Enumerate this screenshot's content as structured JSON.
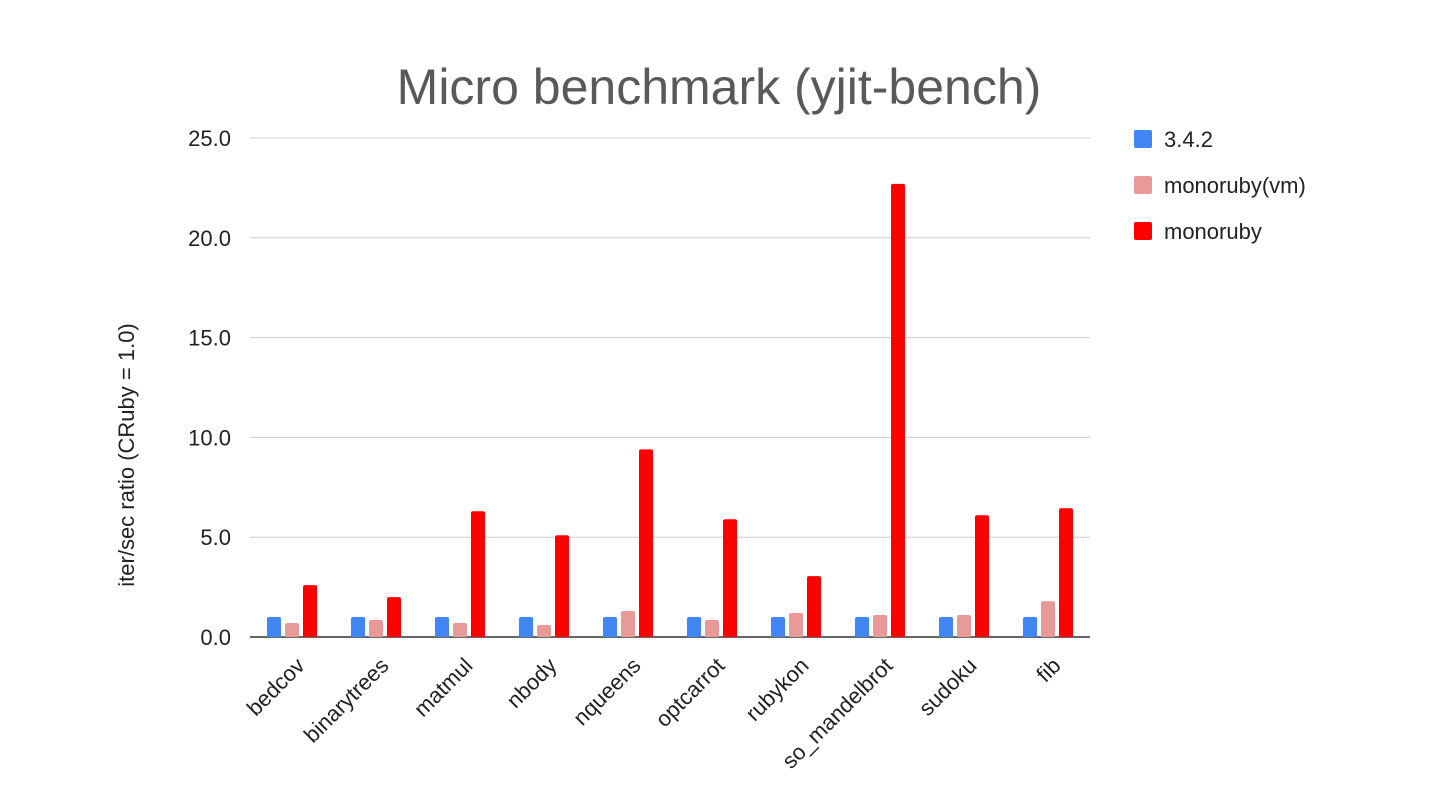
{
  "chart_data": {
    "type": "bar",
    "title": "Micro benchmark (yjit-bench)",
    "ylabel": "iter/sec ratio (CRuby = 1.0)",
    "xlabel": "",
    "ylim": [
      0,
      25
    ],
    "yticks": [
      "0.0",
      "5.0",
      "10.0",
      "15.0",
      "20.0",
      "25.0"
    ],
    "grid": true,
    "legend_position": "right",
    "categories": [
      "bedcov",
      "binarytrees",
      "matmul",
      "nbody",
      "nqueens",
      "optcarrot",
      "rubykon",
      "so_mandelbrot",
      "sudoku",
      "fib"
    ],
    "series": [
      {
        "name": "3.4.2",
        "color": "#4285f4",
        "values": [
          1.0,
          1.0,
          1.0,
          1.0,
          1.0,
          1.0,
          1.0,
          1.0,
          1.0,
          1.0
        ]
      },
      {
        "name": "monoruby(vm)",
        "color": "#ea9999",
        "values": [
          0.7,
          0.85,
          0.7,
          0.6,
          1.3,
          0.85,
          1.2,
          1.1,
          1.1,
          1.8
        ]
      },
      {
        "name": "monoruby",
        "color": "#ff0000",
        "values": [
          2.6,
          2.0,
          6.3,
          5.1,
          9.4,
          5.9,
          3.05,
          22.7,
          6.1,
          6.45
        ]
      }
    ]
  }
}
